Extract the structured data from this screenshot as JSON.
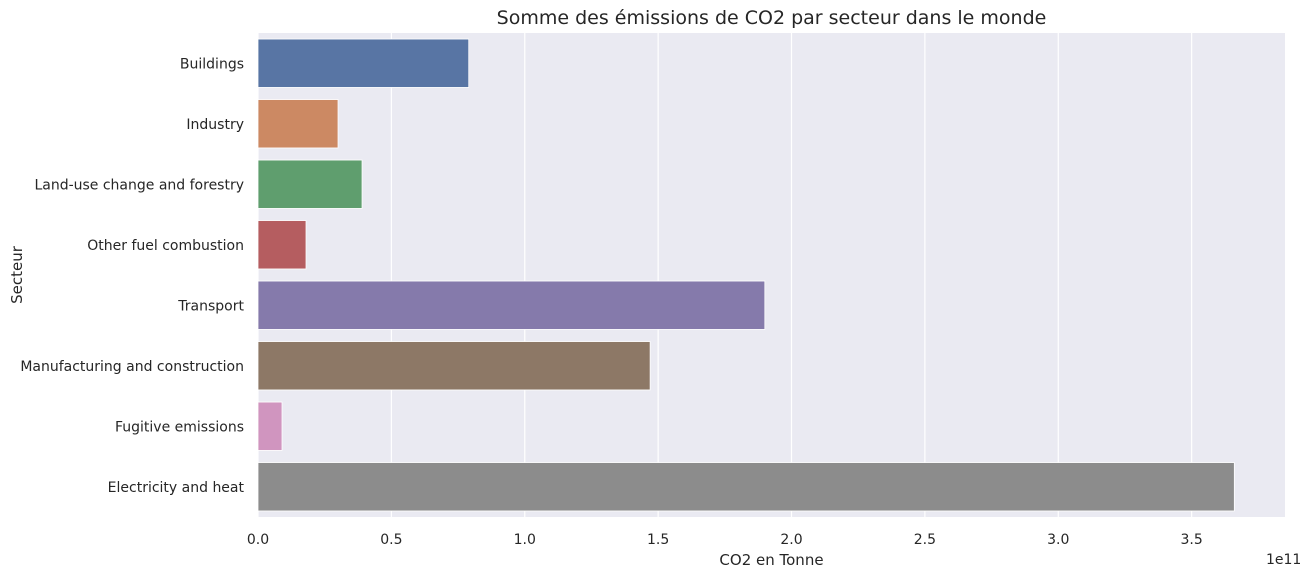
{
  "chart_data": {
    "type": "bar",
    "orientation": "horizontal",
    "title": "Somme des émissions de CO2 par secteur dans le monde",
    "xlabel": "CO2 en Tonne",
    "ylabel": "Secteur",
    "x_offset_label": "1e11",
    "xlim": [
      0,
      3.85
    ],
    "x_ticks": [
      0.0,
      0.5,
      1.0,
      1.5,
      2.0,
      2.5,
      3.0,
      3.5
    ],
    "x_tick_labels": [
      "0.0",
      "0.5",
      "1.0",
      "1.5",
      "2.0",
      "2.5",
      "3.0",
      "3.5"
    ],
    "grid": true,
    "background": "#eaeaf2",
    "categories": [
      "Buildings",
      "Industry",
      "Land-use change and forestry",
      "Other fuel combustion",
      "Transport",
      "Manufacturing and construction",
      "Fugitive emissions",
      "Electricity and heat"
    ],
    "values": [
      0.79,
      0.3,
      0.39,
      0.18,
      1.9,
      1.47,
      0.09,
      3.66
    ],
    "colors": [
      "#5875a4",
      "#cc8963",
      "#5f9e6e",
      "#b55d60",
      "#857aab",
      "#8d7866",
      "#d095bf",
      "#8c8c8c"
    ]
  }
}
